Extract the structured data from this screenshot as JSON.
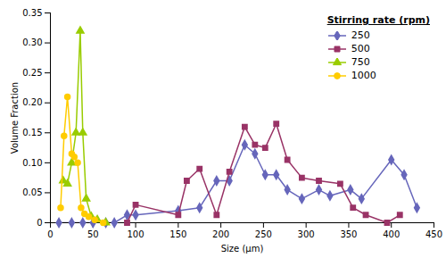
{
  "chart_data": {
    "type": "line",
    "xlabel": "Size (μm)",
    "ylabel": "Volume Fraction",
    "legend_title": "Stirring rate (rpm)",
    "legend": "upper right",
    "grid": false,
    "xlim": [
      0,
      450
    ],
    "ylim": [
      0,
      0.35
    ],
    "xticks": [
      0,
      50,
      100,
      150,
      200,
      250,
      300,
      350,
      400,
      450
    ],
    "yticks": [
      0,
      0.05,
      {
        "value": 0.1,
        "label": "0.10"
      },
      0.15,
      {
        "value": 0.2,
        "label": "0.20"
      },
      0.25,
      {
        "value": 0.3,
        "label": "0.30"
      },
      0.35
    ],
    "series": [
      {
        "name": "250",
        "color": "#6666bb",
        "marker": "diamond",
        "x": [
          10,
          25,
          38,
          50,
          65,
          75,
          90,
          100,
          150,
          175,
          195,
          210,
          228,
          240,
          252,
          265,
          278,
          295,
          315,
          328,
          352,
          365,
          400,
          415,
          430
        ],
        "values": [
          0.0,
          0.0,
          0.0,
          0.0,
          0.0,
          0.0,
          0.013,
          0.013,
          0.02,
          0.025,
          0.07,
          0.07,
          0.13,
          0.115,
          0.08,
          0.08,
          0.055,
          0.04,
          0.055,
          0.045,
          0.055,
          0.04,
          0.105,
          0.08,
          0.025
        ]
      },
      {
        "name": "500",
        "color": "#993366",
        "marker": "square",
        "x": [
          90,
          100,
          150,
          160,
          175,
          195,
          210,
          228,
          240,
          252,
          265,
          278,
          295,
          315,
          340,
          355,
          370,
          395,
          410
        ],
        "values": [
          0.0,
          0.03,
          0.013,
          0.07,
          0.09,
          0.013,
          0.085,
          0.16,
          0.13,
          0.125,
          0.165,
          0.105,
          0.075,
          0.07,
          0.065,
          0.025,
          0.013,
          0.0,
          0.013
        ]
      },
      {
        "name": "750",
        "color": "#99cc00",
        "marker": "triangle",
        "x": [
          15,
          20,
          25,
          30,
          35,
          38,
          42,
          48,
          55,
          65
        ],
        "values": [
          0.07,
          0.065,
          0.1,
          0.15,
          0.32,
          0.15,
          0.04,
          0.01,
          0.005,
          0.0
        ]
      },
      {
        "name": "1000",
        "color": "#ffcc00",
        "marker": "circle",
        "x": [
          12,
          16,
          20,
          25,
          28,
          32,
          36,
          40,
          45,
          52,
          62
        ],
        "values": [
          0.025,
          0.145,
          0.21,
          0.115,
          0.11,
          0.1,
          0.025,
          0.015,
          0.01,
          0.005,
          0.0
        ]
      }
    ]
  }
}
